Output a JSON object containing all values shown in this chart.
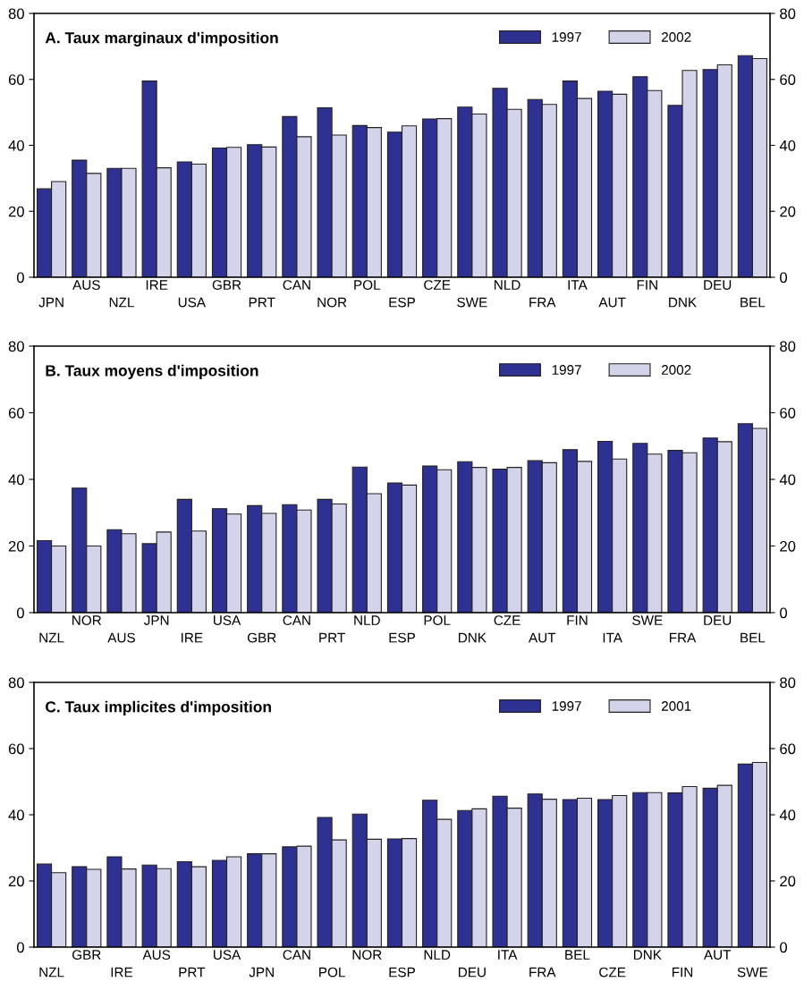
{
  "chart_data": [
    {
      "type": "bar",
      "title": "A. Taux marginaux d'imposition",
      "categories": [
        "JPN",
        "AUS",
        "NZL",
        "IRE",
        "USA",
        "GBR",
        "PRT",
        "CAN",
        "NOR",
        "POL",
        "ESP",
        "CZE",
        "SWE",
        "NLD",
        "FRA",
        "ITA",
        "AUT",
        "FIN",
        "DNK",
        "DEU",
        "BEL"
      ],
      "series": [
        {
          "name": "1997",
          "color": "#2e3192",
          "values": [
            26.8,
            35.5,
            33,
            59.5,
            35,
            39.2,
            40.2,
            48.7,
            51.4,
            46,
            44,
            48,
            51.6,
            57.3,
            53.9,
            59.5,
            56.4,
            60.8,
            52.1,
            63,
            67.2
          ]
        },
        {
          "name": "2002",
          "color": "#d3d3ea",
          "values": [
            29,
            31.5,
            33,
            33.2,
            34.3,
            39.4,
            39.5,
            42.6,
            43.1,
            45.4,
            45.9,
            48.1,
            49.5,
            50.9,
            52.4,
            54.2,
            55.5,
            56.6,
            62.7,
            64.4,
            66.3
          ]
        }
      ],
      "ylim": [
        0,
        80
      ],
      "yticks": [
        0,
        20,
        40,
        60,
        80
      ],
      "y2lim": [
        0,
        80
      ],
      "y2ticks": [
        0,
        20,
        40,
        60,
        80
      ],
      "legend": "top right",
      "grid": false
    },
    {
      "type": "bar",
      "title": "B. Taux moyens d'imposition",
      "categories": [
        "NZL",
        "NOR",
        "AUS",
        "JPN",
        "IRE",
        "USA",
        "GBR",
        "CAN",
        "PRT",
        "NLD",
        "ESP",
        "POL",
        "DNK",
        "CZE",
        "AUT",
        "FIN",
        "ITA",
        "SWE",
        "FRA",
        "DEU",
        "BEL"
      ],
      "series": [
        {
          "name": "1997",
          "color": "#2e3192",
          "values": [
            21.6,
            37.4,
            24.9,
            20.7,
            34,
            31.2,
            32.1,
            32.4,
            34,
            43.7,
            38.9,
            44,
            45.3,
            43.1,
            45.6,
            48.9,
            51.4,
            50.8,
            48.7,
            52.4,
            56.7
          ]
        },
        {
          "name": "2002",
          "color": "#d3d3ea",
          "values": [
            20,
            20,
            23.7,
            24.2,
            24.5,
            29.6,
            29.8,
            30.8,
            32.6,
            35.7,
            38.3,
            42.9,
            43.6,
            43.6,
            45,
            45.4,
            46.1,
            47.6,
            48,
            51.3,
            55.3
          ]
        }
      ],
      "ylim": [
        0,
        80
      ],
      "yticks": [
        0,
        20,
        40,
        60,
        80
      ],
      "y2lim": [
        0,
        80
      ],
      "y2ticks": [
        0,
        20,
        40,
        60,
        80
      ],
      "legend": "top right",
      "grid": false
    },
    {
      "type": "bar",
      "title": "C. Taux implicites d'imposition",
      "categories": [
        "NZL",
        "GBR",
        "IRE",
        "AUS",
        "PRT",
        "USA",
        "JPN",
        "CAN",
        "POL",
        "NOR",
        "ESP",
        "NLD",
        "DEU",
        "ITA",
        "FRA",
        "BEL",
        "CZE",
        "DNK",
        "FIN",
        "AUT",
        "SWE"
      ],
      "series": [
        {
          "name": "1997",
          "color": "#2e3192",
          "values": [
            25.1,
            24.3,
            27.3,
            24.8,
            25.8,
            26.2,
            28.2,
            30.3,
            39.2,
            40.2,
            32.7,
            44.4,
            41.3,
            45.6,
            46.3,
            44.6,
            44.6,
            46.7,
            46.6,
            48,
            55.3
          ]
        },
        {
          "name": "2001",
          "color": "#d3d3ea",
          "values": [
            22.5,
            23.5,
            23.6,
            23.7,
            24.3,
            27.3,
            28.2,
            30.5,
            32.4,
            32.6,
            32.8,
            38.6,
            41.8,
            42,
            44.7,
            45,
            45.8,
            46.7,
            48.5,
            48.9,
            55.8
          ]
        }
      ],
      "ylim": [
        0,
        80
      ],
      "yticks": [
        0,
        20,
        40,
        60,
        80
      ],
      "y2lim": [
        0,
        80
      ],
      "y2ticks": [
        0,
        20,
        40,
        60,
        80
      ],
      "legend": "top right",
      "grid": false
    }
  ]
}
